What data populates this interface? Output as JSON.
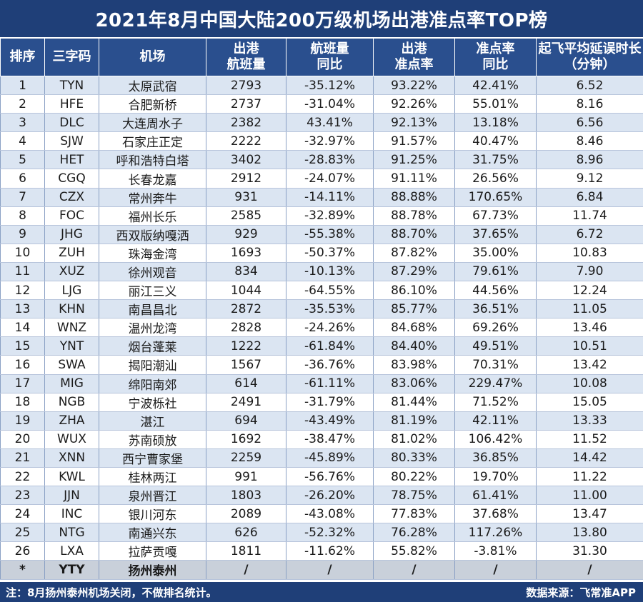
{
  "chart_data": {
    "type": "table",
    "title": "2021年8月中国大陆200万级机场出港准点率TOP榜",
    "columns": [
      "排序",
      "三字码",
      "机场",
      "出港\n航班量",
      "航班量\n同比",
      "出港\n准点率",
      "准点率\n同比",
      "起飞平均延误时长\n（分钟）"
    ],
    "rows": [
      [
        "1",
        "TYN",
        "太原武宿",
        "2793",
        "-35.12%",
        "93.22%",
        "42.41%",
        "6.52"
      ],
      [
        "2",
        "HFE",
        "合肥新桥",
        "2737",
        "-31.04%",
        "92.26%",
        "55.01%",
        "8.16"
      ],
      [
        "3",
        "DLC",
        "大连周水子",
        "2382",
        "43.41%",
        "92.13%",
        "13.18%",
        "6.56"
      ],
      [
        "4",
        "SJW",
        "石家庄正定",
        "2222",
        "-32.97%",
        "91.57%",
        "40.47%",
        "8.46"
      ],
      [
        "5",
        "HET",
        "呼和浩特白塔",
        "3402",
        "-28.83%",
        "91.25%",
        "31.75%",
        "8.96"
      ],
      [
        "6",
        "CGQ",
        "长春龙嘉",
        "2912",
        "-24.07%",
        "91.11%",
        "26.56%",
        "9.12"
      ],
      [
        "7",
        "CZX",
        "常州奔牛",
        "931",
        "-14.11%",
        "88.88%",
        "170.65%",
        "6.84"
      ],
      [
        "8",
        "FOC",
        "福州长乐",
        "2585",
        "-32.89%",
        "88.78%",
        "67.73%",
        "11.74"
      ],
      [
        "9",
        "JHG",
        "西双版纳嘎洒",
        "929",
        "-55.38%",
        "88.70%",
        "37.65%",
        "6.72"
      ],
      [
        "10",
        "ZUH",
        "珠海金湾",
        "1693",
        "-50.37%",
        "87.82%",
        "35.00%",
        "10.83"
      ],
      [
        "11",
        "XUZ",
        "徐州观音",
        "834",
        "-10.13%",
        "87.29%",
        "79.61%",
        "7.90"
      ],
      [
        "12",
        "LJG",
        "丽江三义",
        "1044",
        "-64.55%",
        "86.10%",
        "44.56%",
        "12.24"
      ],
      [
        "13",
        "KHN",
        "南昌昌北",
        "2872",
        "-35.53%",
        "85.77%",
        "36.51%",
        "11.05"
      ],
      [
        "14",
        "WNZ",
        "温州龙湾",
        "2828",
        "-24.26%",
        "84.68%",
        "69.26%",
        "13.46"
      ],
      [
        "15",
        "YNT",
        "烟台蓬莱",
        "1222",
        "-61.84%",
        "84.40%",
        "49.51%",
        "10.51"
      ],
      [
        "16",
        "SWA",
        "揭阳潮汕",
        "1567",
        "-36.76%",
        "83.98%",
        "70.31%",
        "13.42"
      ],
      [
        "17",
        "MIG",
        "绵阳南郊",
        "614",
        "-61.11%",
        "83.06%",
        "229.47%",
        "10.08"
      ],
      [
        "18",
        "NGB",
        "宁波栎社",
        "2491",
        "-31.79%",
        "81.44%",
        "71.52%",
        "15.05"
      ],
      [
        "19",
        "ZHA",
        "湛江",
        "694",
        "-43.49%",
        "81.19%",
        "42.11%",
        "13.33"
      ],
      [
        "20",
        "WUX",
        "苏南硕放",
        "1692",
        "-38.47%",
        "81.02%",
        "106.42%",
        "11.52"
      ],
      [
        "21",
        "XNN",
        "西宁曹家堡",
        "2259",
        "-45.89%",
        "80.33%",
        "36.85%",
        "14.42"
      ],
      [
        "22",
        "KWL",
        "桂林两江",
        "991",
        "-56.76%",
        "80.22%",
        "19.70%",
        "11.22"
      ],
      [
        "23",
        "JJN",
        "泉州晋江",
        "1803",
        "-26.20%",
        "78.75%",
        "61.41%",
        "11.00"
      ],
      [
        "24",
        "INC",
        "银川河东",
        "2089",
        "-43.08%",
        "77.83%",
        "37.68%",
        "13.47"
      ],
      [
        "25",
        "NTG",
        "南通兴东",
        "626",
        "-52.32%",
        "76.28%",
        "117.26%",
        "13.80"
      ],
      [
        "26",
        "LXA",
        "拉萨贡嘎",
        "1811",
        "-11.62%",
        "55.82%",
        "-3.81%",
        "31.30"
      ],
      [
        "*",
        "YTY",
        "扬州泰州",
        "/",
        "/",
        "/",
        "/",
        "/"
      ]
    ],
    "footnote": "注：8月扬州泰州机场关闭，不做排名统计。",
    "source": "数据来源：飞常准APP"
  },
  "colors": {
    "header_bg": "#2a4f8e",
    "title_bg": "#1f3f78",
    "row_stripe": "#dbe5f2",
    "excluded_row": "#c9d0da"
  }
}
